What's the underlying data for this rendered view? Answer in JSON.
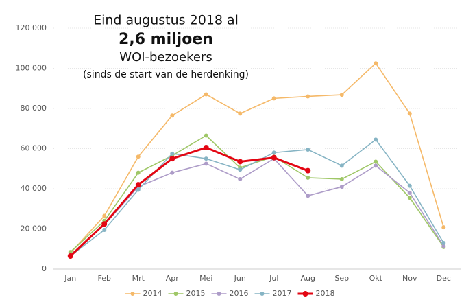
{
  "chart_data": {
    "type": "line",
    "annotation": [
      "Eind augustus 2018 al",
      "2,6 miljoen",
      "WOI-bezoekers",
      "(sinds de start van de herdenking)"
    ],
    "categories": [
      "Jan",
      "Feb",
      "Mrt",
      "Apr",
      "Mei",
      "Jun",
      "Jul",
      "Aug",
      "Sep",
      "Okt",
      "Nov",
      "Dec"
    ],
    "series": [
      {
        "name": "2014",
        "color": "#f5b969",
        "values": [
          8000,
          26500,
          56000,
          76500,
          87000,
          77500,
          85000,
          86000,
          86800,
          102500,
          77500,
          20800
        ]
      },
      {
        "name": "2015",
        "color": "#9fc767",
        "values": [
          8500,
          24000,
          48000,
          56500,
          66500,
          50500,
          56000,
          45500,
          44800,
          53500,
          35500,
          11000
        ]
      },
      {
        "name": "2016",
        "color": "#ad9cc8",
        "values": [
          7000,
          22000,
          41000,
          48000,
          52500,
          44800,
          55000,
          36500,
          41000,
          51500,
          38000,
          11500
        ]
      },
      {
        "name": "2017",
        "color": "#86b4c4",
        "values": [
          6500,
          19500,
          39500,
          57500,
          55000,
          49500,
          58000,
          59500,
          51500,
          64500,
          41500,
          13000
        ]
      },
      {
        "name": "2018",
        "color": "#e30613",
        "values": [
          6500,
          22500,
          42000,
          55000,
          60500,
          53500,
          55500,
          49000,
          null,
          null,
          null,
          null
        ]
      }
    ],
    "ylim": [
      0,
      120000
    ],
    "yticks": [
      0,
      {
        "value": 20000,
        "label": "20 000"
      },
      {
        "value": 40000,
        "label": "40 000"
      },
      {
        "value": 60000,
        "label": "60 000"
      },
      {
        "value": 80000,
        "label": "80 000"
      },
      {
        "value": 100000,
        "label": "100 000"
      },
      {
        "value": 120000,
        "label": "120 000"
      }
    ],
    "grid": true,
    "legend": "bottom"
  }
}
